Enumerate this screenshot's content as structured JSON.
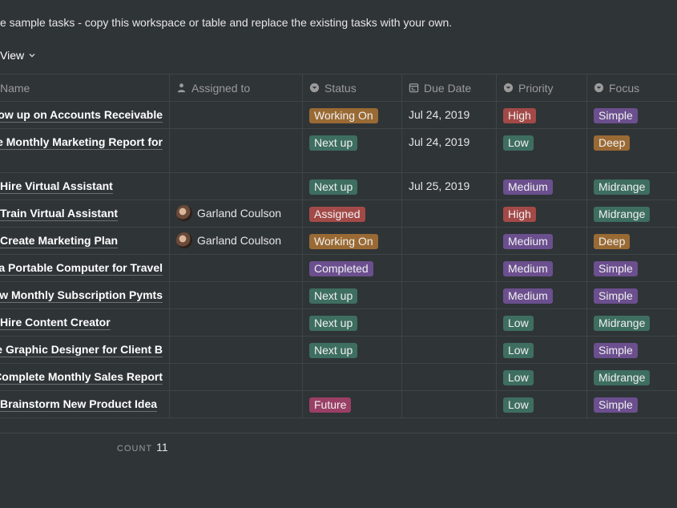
{
  "description": "e sample tasks - copy this workspace or table and replace the existing tasks with your own.",
  "view_label": "View",
  "columns": {
    "name": "Name",
    "assigned": "Assigned to",
    "status": "Status",
    "due": "Due Date",
    "priority": "Priority",
    "focus": "Focus"
  },
  "colors": {
    "working_on": "#9a6a34",
    "next_up": "#3e6e60",
    "assigned": "#a34a48",
    "completed": "#6b4f8e",
    "future": "#9a3f65",
    "high": "#a34a48",
    "low": "#3e6e60",
    "medium": "#6b4f8e",
    "simple": "#6b4f8e",
    "deep": "#9a6a34",
    "midrange": "#3e6e60"
  },
  "rows": [
    {
      "name": "Follow up on Accounts Receivable",
      "assigned": "",
      "status": "Working On",
      "status_color": "#9a6a34",
      "due": "Jul 24, 2019",
      "priority": "High",
      "priority_color": "#a34a48",
      "focus": "Simple",
      "focus_color": "#6b4f8e"
    },
    {
      "name": "Create Monthly Marketing Report for",
      "assigned": "",
      "status": "Next up",
      "status_color": "#3e6e60",
      "due": "Jul 24, 2019",
      "priority": "Low",
      "priority_color": "#3e6e60",
      "focus": "Deep",
      "focus_color": "#9a6a34"
    },
    {
      "name": "Hire Virtual Assistant",
      "assigned": "",
      "status": "Next up",
      "status_color": "#3e6e60",
      "due": "Jul 25, 2019",
      "priority": "Medium",
      "priority_color": "#6b4f8e",
      "focus": "Midrange",
      "focus_color": "#3e6e60"
    },
    {
      "name": "Train Virtual Assistant",
      "assigned": "Garland Coulson",
      "status": "Assigned",
      "status_color": "#a34a48",
      "due": "",
      "priority": "High",
      "priority_color": "#a34a48",
      "focus": "Midrange",
      "focus_color": "#3e6e60"
    },
    {
      "name": "Create Marketing Plan",
      "assigned": "Garland Coulson",
      "status": "Working On",
      "status_color": "#9a6a34",
      "due": "",
      "priority": "Medium",
      "priority_color": "#6b4f8e",
      "focus": "Deep",
      "focus_color": "#9a6a34"
    },
    {
      "name": "Research a Portable Computer for Travel",
      "assigned": "",
      "status": "Completed",
      "status_color": "#6b4f8e",
      "due": "",
      "priority": "Medium",
      "priority_color": "#6b4f8e",
      "focus": "Simple",
      "focus_color": "#6b4f8e"
    },
    {
      "name": "Review Monthly Subscription Pymts",
      "assigned": "",
      "status": "Next up",
      "status_color": "#3e6e60",
      "due": "",
      "priority": "Medium",
      "priority_color": "#6b4f8e",
      "focus": "Simple",
      "focus_color": "#6b4f8e"
    },
    {
      "name": "Hire Content Creator",
      "assigned": "",
      "status": "Next up",
      "status_color": "#3e6e60",
      "due": "",
      "priority": "Low",
      "priority_color": "#3e6e60",
      "focus": "Midrange",
      "focus_color": "#3e6e60"
    },
    {
      "name": "Hire Graphic Designer for Client B",
      "assigned": "",
      "status": "Next up",
      "status_color": "#3e6e60",
      "due": "",
      "priority": "Low",
      "priority_color": "#3e6e60",
      "focus": "Simple",
      "focus_color": "#6b4f8e"
    },
    {
      "name": "Complete Monthly Sales Report",
      "assigned": "",
      "status": "",
      "status_color": "",
      "due": "",
      "priority": "Low",
      "priority_color": "#3e6e60",
      "focus": "Midrange",
      "focus_color": "#3e6e60"
    },
    {
      "name": "Brainstorm New Product Idea",
      "assigned": "",
      "status": "Future",
      "status_color": "#9a3f65",
      "due": "",
      "priority": "Low",
      "priority_color": "#3e6e60",
      "focus": "Simple",
      "focus_color": "#6b4f8e"
    }
  ],
  "footer": {
    "count_label": "COUNT",
    "count_value": "11"
  }
}
